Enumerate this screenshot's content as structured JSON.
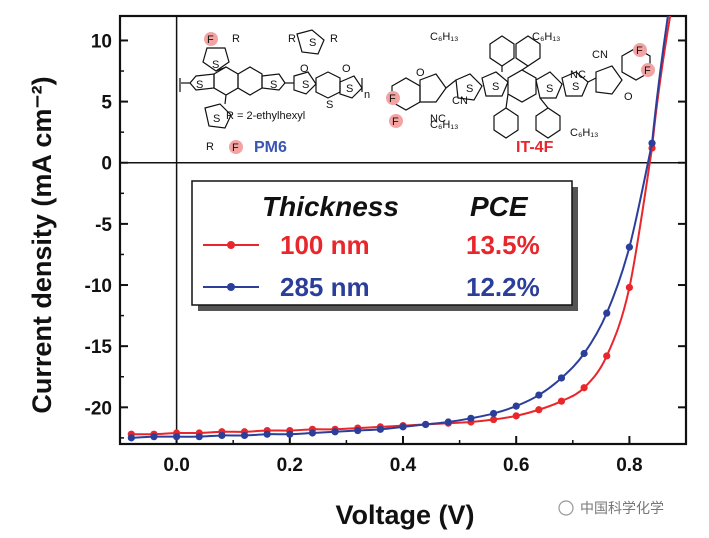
{
  "chart_data": {
    "type": "line",
    "title": "",
    "xlabel": "Voltage (V)",
    "ylabel": "Current density (mA cm⁻²)",
    "xlim": [
      -0.1,
      0.9
    ],
    "ylim": [
      -23,
      12
    ],
    "x_ticks": [
      0.0,
      0.2,
      0.4,
      0.6,
      0.8
    ],
    "x_tick_labels": [
      "0.0",
      "0.2",
      "0.4",
      "0.6",
      "0.8"
    ],
    "y_ticks": [
      10,
      5,
      0,
      -5,
      -10,
      -15,
      -20
    ],
    "y_tick_labels": [
      "10",
      "5",
      "0",
      "-5",
      "-10",
      "-15",
      "-20"
    ],
    "reference_lines": {
      "x": 0,
      "y": 0
    },
    "legend": {
      "header_left": "Thickness",
      "header_right": "PCE",
      "placement": "center"
    },
    "series": [
      {
        "name": "100 nm",
        "pce": "13.5%",
        "color": "#e8262b",
        "x": [
          -0.08,
          -0.04,
          0.0,
          0.04,
          0.08,
          0.12,
          0.16,
          0.2,
          0.24,
          0.28,
          0.32,
          0.36,
          0.4,
          0.44,
          0.48,
          0.52,
          0.56,
          0.6,
          0.64,
          0.68,
          0.72,
          0.76,
          0.8,
          0.84
        ],
        "y": [
          -22.2,
          -22.2,
          -22.1,
          -22.1,
          -22.0,
          -22.0,
          -21.9,
          -21.9,
          -21.8,
          -21.8,
          -21.7,
          -21.6,
          -21.5,
          -21.4,
          -21.3,
          -21.2,
          -21.0,
          -20.7,
          -20.2,
          -19.5,
          -18.4,
          -15.8,
          -10.2,
          1.2
        ]
      },
      {
        "name": "285 nm",
        "pce": "12.2%",
        "color": "#2b3f9a",
        "x": [
          -0.08,
          -0.04,
          0.0,
          0.04,
          0.08,
          0.12,
          0.16,
          0.2,
          0.24,
          0.28,
          0.32,
          0.36,
          0.4,
          0.44,
          0.48,
          0.52,
          0.56,
          0.6,
          0.64,
          0.68,
          0.72,
          0.76,
          0.8,
          0.84
        ],
        "y": [
          -22.5,
          -22.4,
          -22.4,
          -22.4,
          -22.3,
          -22.3,
          -22.2,
          -22.2,
          -22.1,
          -22.0,
          -21.9,
          -21.8,
          -21.6,
          -21.4,
          -21.2,
          -20.9,
          -20.5,
          -19.9,
          -19.0,
          -17.6,
          -15.6,
          -12.3,
          -6.9,
          1.6
        ]
      }
    ]
  },
  "molecules": {
    "donor": {
      "name": "PM6",
      "side_chain": "R = 2-ethylhexyl",
      "atoms": {
        "f": "F",
        "s": "S",
        "r": "R",
        "o": "O",
        "n": "n"
      }
    },
    "acceptor": {
      "name": "IT-4F",
      "atoms": {
        "f": "F",
        "s": "S",
        "o": "O",
        "cn": "CN",
        "nc": "NC",
        "alkyl": "C₆H₁₃"
      }
    }
  },
  "watermark": "中国科学化学",
  "colors": {
    "red": "#e8262b",
    "blue": "#2b3f9a",
    "accent_blue": "#3a55b4",
    "axis": "#111111"
  }
}
